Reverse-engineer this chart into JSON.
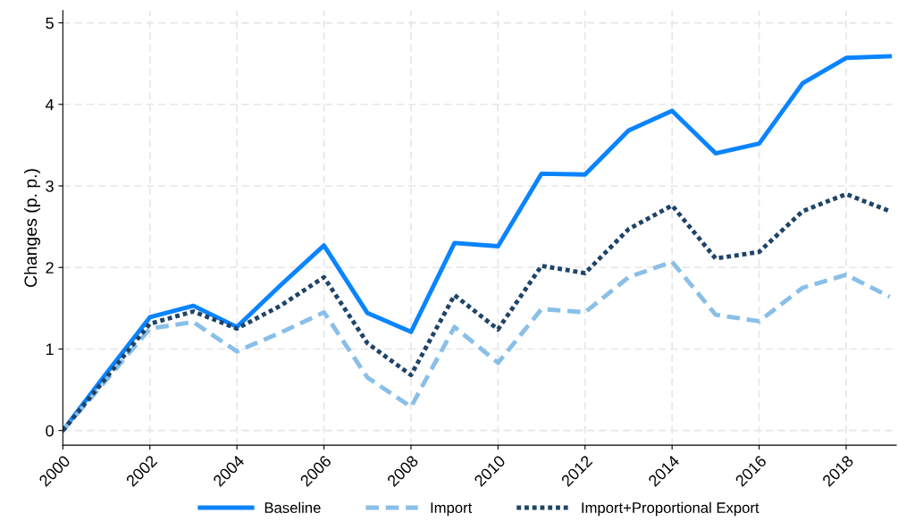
{
  "chart_data": {
    "type": "line",
    "ylabel": "Changes (p. p.)",
    "x": [
      2000,
      2001,
      2002,
      2003,
      2004,
      2005,
      2006,
      2007,
      2008,
      2009,
      2010,
      2011,
      2012,
      2013,
      2014,
      2015,
      2016,
      2017,
      2018,
      2019
    ],
    "series": [
      {
        "name": "Baseline",
        "color": "#0a84ff",
        "line_style": "solid",
        "values": [
          0,
          0.7,
          1.39,
          1.53,
          1.27,
          1.78,
          2.27,
          1.44,
          1.21,
          2.3,
          2.26,
          3.15,
          3.14,
          3.68,
          3.92,
          3.4,
          3.52,
          4.26,
          4.57,
          4.59
        ]
      },
      {
        "name": "Import",
        "color": "#89bfe8",
        "line_style": "dashed",
        "values": [
          0,
          0.62,
          1.25,
          1.33,
          0.97,
          1.2,
          1.45,
          0.65,
          0.29,
          1.27,
          0.83,
          1.49,
          1.45,
          1.88,
          2.07,
          1.42,
          1.34,
          1.75,
          1.91,
          1.64
        ]
      },
      {
        "name": "Import+Proportional Export",
        "color": "#1f4468",
        "line_style": "dotted",
        "values": [
          0,
          0.65,
          1.31,
          1.46,
          1.25,
          1.53,
          1.88,
          1.07,
          0.68,
          1.66,
          1.24,
          2.02,
          1.93,
          2.47,
          2.76,
          2.11,
          2.19,
          2.69,
          2.9,
          2.69
        ]
      }
    ],
    "xlim": [
      2000,
      2019.15
    ],
    "xticks": [
      2000,
      2002,
      2004,
      2006,
      2008,
      2010,
      2012,
      2014,
      2016,
      2018
    ],
    "ylim": [
      -0.18,
      5.15
    ],
    "yticks": [
      0,
      1,
      2,
      3,
      4,
      5
    ],
    "grid": true,
    "legend": "bottom",
    "marker": "none"
  }
}
